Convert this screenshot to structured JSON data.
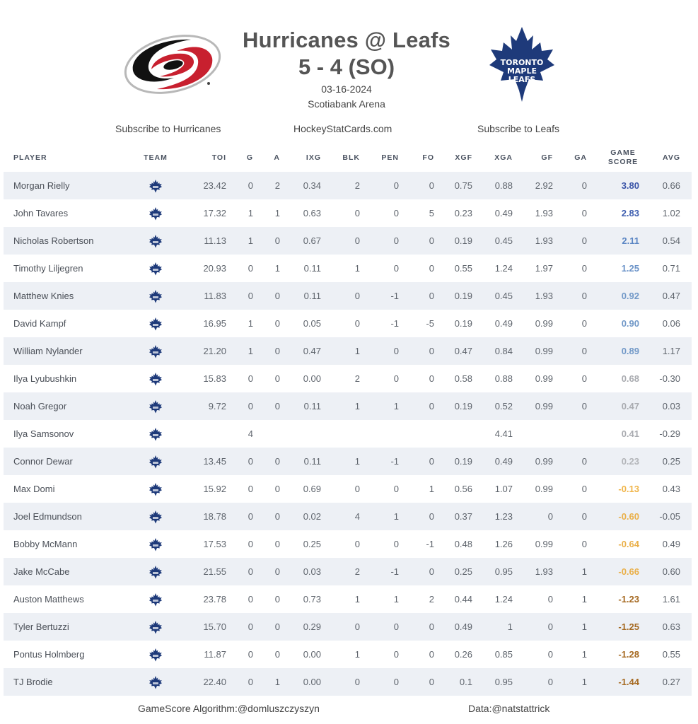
{
  "header": {
    "title": "Hurricanes @ Leafs",
    "score": "5 - 4 (SO)",
    "date": "03-16-2024",
    "arena": "Scotiabank Arena",
    "away_logo": "carolina-hurricanes-logo",
    "home_logo": "toronto-maple-leafs-logo"
  },
  "links": {
    "subscribe_away": "Subscribe to Hurricanes",
    "site": "HockeyStatCards.com",
    "subscribe_home": "Subscribe to Leafs"
  },
  "table": {
    "columns": [
      "PLAYER",
      "TEAM",
      "TOI",
      "G",
      "A",
      "IXG",
      "BLK",
      "PEN",
      "FO",
      "XGF",
      "XGA",
      "GF",
      "GA",
      "GAME SCORE",
      "AVG"
    ],
    "team_icon": "maple-leaf-icon",
    "rows": [
      {
        "player": "Morgan Rielly",
        "toi": "23.42",
        "g": "0",
        "a": "2",
        "ixg": "0.34",
        "blk": "2",
        "pen": "0",
        "fo": "0",
        "xgf": "0.75",
        "xga": "0.88",
        "gf": "2.92",
        "ga": "0",
        "gs": "3.80",
        "avg": "0.66",
        "gs_color": "#3b55a8"
      },
      {
        "player": "John Tavares",
        "toi": "17.32",
        "g": "1",
        "a": "1",
        "ixg": "0.63",
        "blk": "0",
        "pen": "0",
        "fo": "5",
        "xgf": "0.23",
        "xga": "0.49",
        "gf": "1.93",
        "ga": "0",
        "gs": "2.83",
        "avg": "1.02",
        "gs_color": "#3f5fb0"
      },
      {
        "player": "Nicholas Robertson",
        "toi": "11.13",
        "g": "1",
        "a": "0",
        "ixg": "0.67",
        "blk": "0",
        "pen": "0",
        "fo": "0",
        "xgf": "0.19",
        "xga": "0.45",
        "gf": "1.93",
        "ga": "0",
        "gs": "2.11",
        "avg": "0.54",
        "gs_color": "#5b86c4"
      },
      {
        "player": "Timothy Liljegren",
        "toi": "20.93",
        "g": "0",
        "a": "1",
        "ixg": "0.11",
        "blk": "1",
        "pen": "0",
        "fo": "0",
        "xgf": "0.55",
        "xga": "1.24",
        "gf": "1.97",
        "ga": "0",
        "gs": "1.25",
        "avg": "0.71",
        "gs_color": "#6b93c8"
      },
      {
        "player": "Matthew Knies",
        "toi": "11.83",
        "g": "0",
        "a": "0",
        "ixg": "0.11",
        "blk": "0",
        "pen": "-1",
        "fo": "0",
        "xgf": "0.19",
        "xga": "0.45",
        "gf": "1.93",
        "ga": "0",
        "gs": "0.92",
        "avg": "0.47",
        "gs_color": "#7299c8"
      },
      {
        "player": "David Kampf",
        "toi": "16.95",
        "g": "1",
        "a": "0",
        "ixg": "0.05",
        "blk": "0",
        "pen": "-1",
        "fo": "-5",
        "xgf": "0.19",
        "xga": "0.49",
        "gf": "0.99",
        "ga": "0",
        "gs": "0.90",
        "avg": "0.06",
        "gs_color": "#7299c8"
      },
      {
        "player": "William Nylander",
        "toi": "21.20",
        "g": "1",
        "a": "0",
        "ixg": "0.47",
        "blk": "1",
        "pen": "0",
        "fo": "0",
        "xgf": "0.47",
        "xga": "0.84",
        "gf": "0.99",
        "ga": "0",
        "gs": "0.89",
        "avg": "1.17",
        "gs_color": "#7299c8"
      },
      {
        "player": "Ilya Lyubushkin",
        "toi": "15.83",
        "g": "0",
        "a": "0",
        "ixg": "0.00",
        "blk": "2",
        "pen": "0",
        "fo": "0",
        "xgf": "0.58",
        "xga": "0.88",
        "gf": "0.99",
        "ga": "0",
        "gs": "0.68",
        "avg": "-0.30",
        "gs_color": "#a9abb0"
      },
      {
        "player": "Noah Gregor",
        "toi": "9.72",
        "g": "0",
        "a": "0",
        "ixg": "0.11",
        "blk": "1",
        "pen": "1",
        "fo": "0",
        "xgf": "0.19",
        "xga": "0.52",
        "gf": "0.99",
        "ga": "0",
        "gs": "0.47",
        "avg": "0.03",
        "gs_color": "#a9abb0"
      },
      {
        "player": "Ilya Samsonov",
        "toi": "",
        "g": "4",
        "a": "",
        "ixg": "",
        "blk": "",
        "pen": "",
        "fo": "",
        "xgf": "",
        "xga": "4.41",
        "gf": "",
        "ga": "",
        "gs": "0.41",
        "avg": "-0.29",
        "gs_color": "#a9abb0"
      },
      {
        "player": "Connor Dewar",
        "toi": "13.45",
        "g": "0",
        "a": "0",
        "ixg": "0.11",
        "blk": "1",
        "pen": "-1",
        "fo": "0",
        "xgf": "0.19",
        "xga": "0.49",
        "gf": "0.99",
        "ga": "0",
        "gs": "0.23",
        "avg": "0.25",
        "gs_color": "#b3b5b9"
      },
      {
        "player": "Max Domi",
        "toi": "15.92",
        "g": "0",
        "a": "0",
        "ixg": "0.69",
        "blk": "0",
        "pen": "0",
        "fo": "1",
        "xgf": "0.56",
        "xga": "1.07",
        "gf": "0.99",
        "ga": "0",
        "gs": "-0.13",
        "avg": "0.43",
        "gs_color": "#f0b54a"
      },
      {
        "player": "Joel Edmundson",
        "toi": "18.78",
        "g": "0",
        "a": "0",
        "ixg": "0.02",
        "blk": "4",
        "pen": "1",
        "fo": "0",
        "xgf": "0.37",
        "xga": "1.23",
        "gf": "0",
        "ga": "0",
        "gs": "-0.60",
        "avg": "-0.05",
        "gs_color": "#eab04a"
      },
      {
        "player": "Bobby McMann",
        "toi": "17.53",
        "g": "0",
        "a": "0",
        "ixg": "0.25",
        "blk": "0",
        "pen": "0",
        "fo": "-1",
        "xgf": "0.48",
        "xga": "1.26",
        "gf": "0.99",
        "ga": "0",
        "gs": "-0.64",
        "avg": "0.49",
        "gs_color": "#eab04a"
      },
      {
        "player": "Jake McCabe",
        "toi": "21.55",
        "g": "0",
        "a": "0",
        "ixg": "0.03",
        "blk": "2",
        "pen": "-1",
        "fo": "0",
        "xgf": "0.25",
        "xga": "0.95",
        "gf": "1.93",
        "ga": "1",
        "gs": "-0.66",
        "avg": "0.60",
        "gs_color": "#eab04a"
      },
      {
        "player": "Auston Matthews",
        "toi": "23.78",
        "g": "0",
        "a": "0",
        "ixg": "0.73",
        "blk": "1",
        "pen": "1",
        "fo": "2",
        "xgf": "0.44",
        "xga": "1.24",
        "gf": "0",
        "ga": "1",
        "gs": "-1.23",
        "avg": "1.61",
        "gs_color": "#a66a22"
      },
      {
        "player": "Tyler Bertuzzi",
        "toi": "15.70",
        "g": "0",
        "a": "0",
        "ixg": "0.29",
        "blk": "0",
        "pen": "0",
        "fo": "0",
        "xgf": "0.49",
        "xga": "1",
        "gf": "0",
        "ga": "1",
        "gs": "-1.25",
        "avg": "0.63",
        "gs_color": "#a66a22"
      },
      {
        "player": "Pontus Holmberg",
        "toi": "11.87",
        "g": "0",
        "a": "0",
        "ixg": "0.00",
        "blk": "1",
        "pen": "0",
        "fo": "0",
        "xgf": "0.26",
        "xga": "0.85",
        "gf": "0",
        "ga": "1",
        "gs": "-1.28",
        "avg": "0.55",
        "gs_color": "#a66a22"
      },
      {
        "player": "TJ Brodie",
        "toi": "22.40",
        "g": "0",
        "a": "1",
        "ixg": "0.00",
        "blk": "0",
        "pen": "0",
        "fo": "0",
        "xgf": "0.1",
        "xga": "0.95",
        "gf": "0",
        "ga": "1",
        "gs": "-1.44",
        "avg": "0.27",
        "gs_color": "#a66a22"
      }
    ]
  },
  "footer": {
    "algorithm_credit": "GameScore Algorithm:@domluszczyszyn",
    "data_credit": "Data:@natstattrick"
  },
  "colors": {
    "row_alt": "#edf0f5",
    "leafs_blue": "#1e3a7a",
    "hurricanes_red": "#c8102e"
  }
}
